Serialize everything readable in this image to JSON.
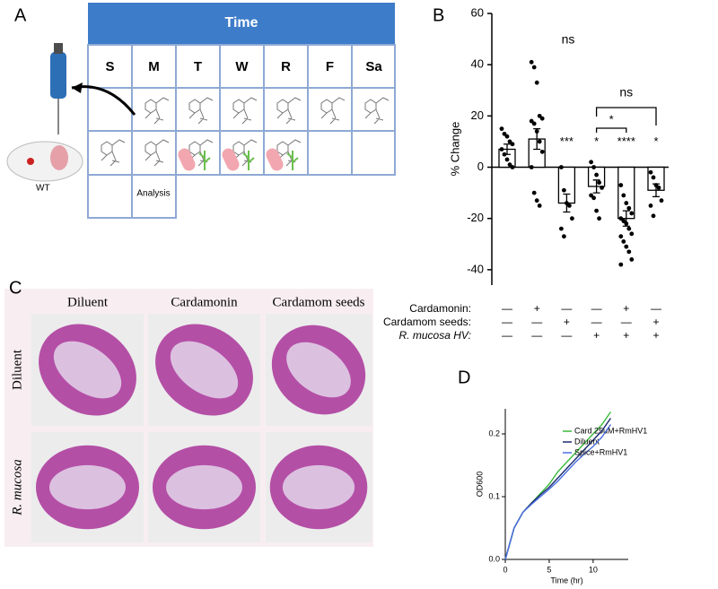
{
  "panel_labels": [
    "A",
    "B",
    "C",
    "D"
  ],
  "schedule": {
    "title": "Time",
    "days": [
      "S",
      "M",
      "T",
      "W",
      "R",
      "F",
      "Sa"
    ],
    "analysis_label": "Analysis",
    "mouse_label": "WT"
  },
  "histology": {
    "columns": [
      "Diluent",
      "Cardamonin",
      "Cardamom seeds"
    ],
    "rows": [
      "Diluent",
      "R. mucosa"
    ]
  },
  "chart_data": [
    {
      "type": "bar",
      "y_label": "% Change",
      "color": "#ffffff",
      "ylim": [
        -46,
        60
      ],
      "yticks": [
        -40,
        -20,
        0,
        20,
        40,
        60
      ],
      "values": [
        7,
        11,
        -14,
        -7.5,
        -20,
        -9
      ],
      "errors": [
        2,
        4,
        3.5,
        2.5,
        3,
        2.5
      ],
      "points": [
        [
          15,
          13,
          12,
          10,
          9,
          7,
          5,
          3,
          1,
          0
        ],
        [
          41,
          39,
          33,
          20,
          19,
          18,
          17,
          14,
          10,
          6,
          0,
          -10,
          -13,
          -15
        ],
        [
          0,
          -9,
          -14,
          -15,
          -20,
          -24,
          -27
        ],
        [
          2,
          0,
          -3,
          -6,
          -8,
          -11,
          -12,
          -17,
          -20
        ],
        [
          -7,
          -11,
          -14,
          -16,
          -18,
          -20,
          -21,
          -22,
          -24,
          -26,
          -27,
          -29,
          -31,
          -33,
          -36,
          -38
        ],
        [
          -2,
          -4,
          -7,
          -8,
          -13,
          -15,
          -19
        ]
      ],
      "significance": [
        null,
        null,
        "***",
        "*",
        "****",
        "*"
      ],
      "top_note": "ns",
      "comparisons": [
        "*",
        "ns"
      ],
      "conditions": [
        {
          "name": "Cardamonin:",
          "marks": [
            "—",
            "+",
            "—",
            "—",
            "+",
            "—"
          ]
        },
        {
          "name": "Cardamom seeds:",
          "marks": [
            "—",
            "—",
            "+",
            "—",
            "—",
            "+"
          ]
        },
        {
          "name": "R. mucosa HV:",
          "marks": [
            "—",
            "—",
            "—",
            "+",
            "+",
            "+"
          ]
        }
      ]
    },
    {
      "type": "line",
      "x_label": "Time (hr)",
      "y_label": "OD600",
      "xlim": [
        0,
        14
      ],
      "xticks": [
        0,
        5,
        10
      ],
      "ylim": [
        0,
        0.24
      ],
      "yticks": [
        {
          "value": 0,
          "label": "0.0"
        },
        0.1,
        0.2
      ],
      "legend": "upper right",
      "x": [
        0,
        1,
        2,
        3,
        4,
        5,
        6,
        7,
        8,
        9,
        10,
        11,
        12
      ],
      "series": [
        {
          "name": "Card 25uM+RmHV1",
          "color": "#3cb93c",
          "values": [
            0,
            0.05,
            0.075,
            0.09,
            0.105,
            0.12,
            0.14,
            0.155,
            0.17,
            0.185,
            0.2,
            0.215,
            0.235
          ]
        },
        {
          "name": "Diluent",
          "color": "#1a2a6c",
          "values": [
            0,
            0.05,
            0.075,
            0.09,
            0.103,
            0.115,
            0.13,
            0.145,
            0.16,
            0.175,
            0.19,
            0.205,
            0.225
          ]
        },
        {
          "name": "Spice+RmHV1",
          "color": "#4a6fe0",
          "values": [
            0,
            0.05,
            0.075,
            0.088,
            0.1,
            0.112,
            0.125,
            0.14,
            0.155,
            0.168,
            0.18,
            0.195,
            0.215
          ]
        }
      ]
    }
  ]
}
